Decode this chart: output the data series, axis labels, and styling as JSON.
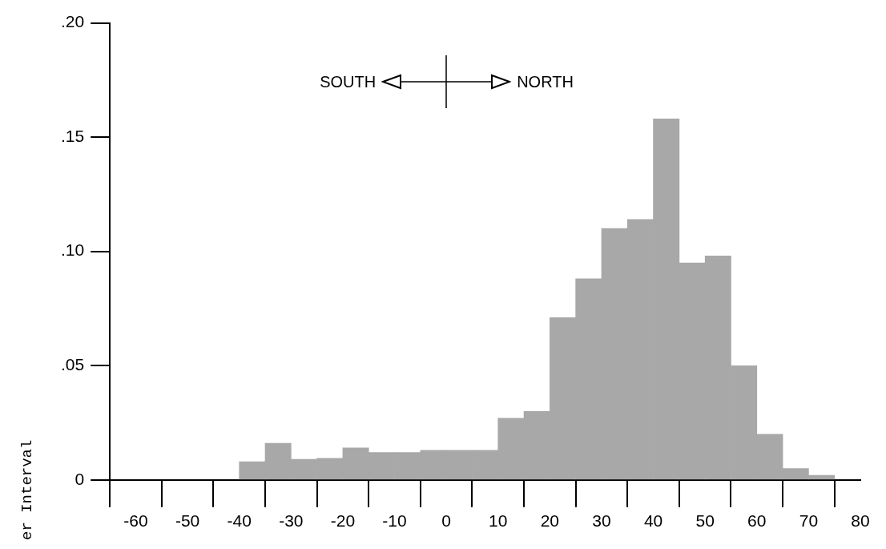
{
  "chart_data": {
    "type": "histogram",
    "ylabel": "er Interval",
    "bins": [
      -40,
      -35,
      -30,
      -25,
      -20,
      -15,
      -10,
      -5,
      0,
      5,
      10,
      15,
      20,
      25,
      30,
      35,
      40,
      45,
      50,
      55,
      60,
      65,
      70,
      75
    ],
    "values": [
      0.008,
      0.016,
      0.009,
      0.0095,
      0.014,
      0.012,
      0.012,
      0.013,
      0.013,
      0.013,
      0.027,
      0.03,
      0.071,
      0.088,
      0.11,
      0.114,
      0.158,
      0.095,
      0.098,
      0.05,
      0.02,
      0.005,
      0.002
    ],
    "color": "#a8a8a8",
    "xlim": [
      -65,
      80
    ],
    "xticks": [
      -60,
      -50,
      -40,
      -30,
      -20,
      -10,
      0,
      10,
      20,
      30,
      40,
      50,
      60,
      70,
      80
    ],
    "ylim": [
      0,
      0.2
    ],
    "yticks": [
      0,
      {
        "value": 0.05,
        "label": ".05"
      },
      {
        "value": 0.1,
        "label": ".10"
      },
      {
        "value": 0.15,
        "label": ".15"
      },
      {
        "value": 0.2,
        "label": ".20"
      }
    ],
    "annotations": [
      "SOUTH",
      "NORTH"
    ],
    "grid": false,
    "legend": false
  }
}
